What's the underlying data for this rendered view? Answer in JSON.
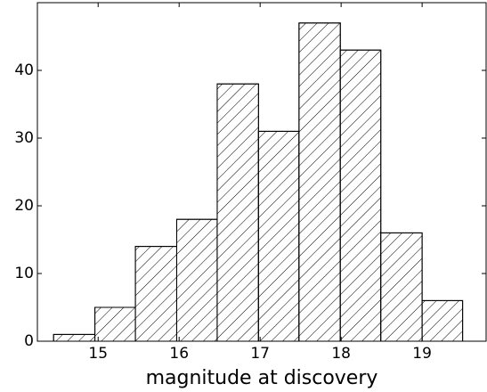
{
  "chart_data": {
    "type": "histogram",
    "x_label": "magnitude at discovery",
    "bins": [
      14.45,
      14.96,
      15.46,
      15.97,
      16.47,
      16.98,
      17.48,
      17.99,
      18.49,
      19.0,
      19.5
    ],
    "values": [
      1,
      5,
      14,
      18,
      38,
      31,
      47,
      43,
      16,
      6
    ],
    "color": "#ffffff",
    "hatch": "/",
    "xlim": [
      14.25,
      19.79
    ],
    "xticks": [
      15,
      16,
      17,
      18,
      19
    ],
    "ylim": [
      0,
      50
    ],
    "yticks": [
      0,
      10,
      20,
      30,
      40
    ],
    "grid": false
  }
}
